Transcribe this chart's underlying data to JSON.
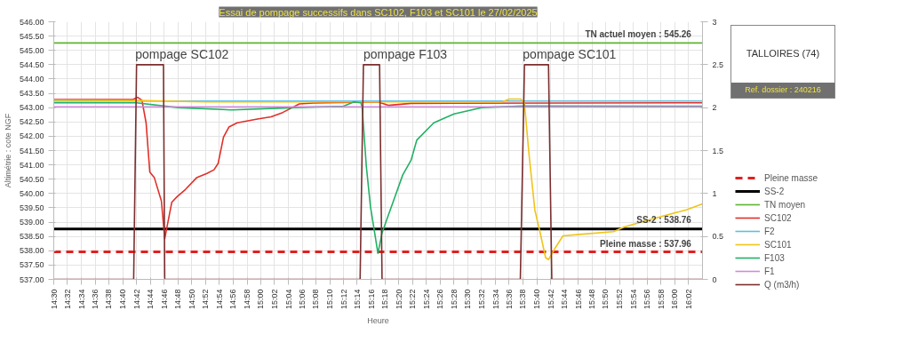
{
  "chart_data": {
    "type": "line",
    "title": "Essai de pompage successifs dans SC102, F103 et SC101 le 27/02/2025",
    "xlabel": "Heure",
    "ylabel": "Altimétrie : cote NGF",
    "xlim": [
      14.5,
      16.067
    ],
    "ylim": [
      537,
      546
    ],
    "y2lim": [
      0,
      3
    ],
    "xticks": [
      {
        "value": 14.5,
        "label": "14:30"
      },
      {
        "value": 14.533,
        "label": "14:32"
      },
      {
        "value": 14.567,
        "label": "14:34"
      },
      {
        "value": 14.6,
        "label": "14:36"
      },
      {
        "value": 14.633,
        "label": "14:38"
      },
      {
        "value": 14.667,
        "label": "14:40"
      },
      {
        "value": 14.7,
        "label": "14:42"
      },
      {
        "value": 14.733,
        "label": "14:44"
      },
      {
        "value": 14.767,
        "label": "14:46"
      },
      {
        "value": 14.8,
        "label": "14:48"
      },
      {
        "value": 14.833,
        "label": "14:50"
      },
      {
        "value": 14.867,
        "label": "14:52"
      },
      {
        "value": 14.9,
        "label": "14:54"
      },
      {
        "value": 14.933,
        "label": "14:56"
      },
      {
        "value": 14.967,
        "label": "14:58"
      },
      {
        "value": 15.0,
        "label": "15:00"
      },
      {
        "value": 15.033,
        "label": "15:02"
      },
      {
        "value": 15.067,
        "label": "15:04"
      },
      {
        "value": 15.1,
        "label": "15:06"
      },
      {
        "value": 15.133,
        "label": "15:08"
      },
      {
        "value": 15.167,
        "label": "15:10"
      },
      {
        "value": 15.2,
        "label": "15:12"
      },
      {
        "value": 15.233,
        "label": "15:14"
      },
      {
        "value": 15.267,
        "label": "15:16"
      },
      {
        "value": 15.3,
        "label": "15:18"
      },
      {
        "value": 15.333,
        "label": "15:20"
      },
      {
        "value": 15.367,
        "label": "15:22"
      },
      {
        "value": 15.4,
        "label": "15:24"
      },
      {
        "value": 15.433,
        "label": "15:26"
      },
      {
        "value": 15.467,
        "label": "15:28"
      },
      {
        "value": 15.5,
        "label": "15:30"
      },
      {
        "value": 15.533,
        "label": "15:32"
      },
      {
        "value": 15.567,
        "label": "15:34"
      },
      {
        "value": 15.6,
        "label": "15:36"
      },
      {
        "value": 15.633,
        "label": "15:38"
      },
      {
        "value": 15.667,
        "label": "15:40"
      },
      {
        "value": 15.7,
        "label": "15:42"
      },
      {
        "value": 15.733,
        "label": "15:44"
      },
      {
        "value": 15.767,
        "label": "15:46"
      },
      {
        "value": 15.8,
        "label": "15:48"
      },
      {
        "value": 15.833,
        "label": "15:50"
      },
      {
        "value": 15.867,
        "label": "15:52"
      },
      {
        "value": 15.9,
        "label": "15:54"
      },
      {
        "value": 15.933,
        "label": "15:56"
      },
      {
        "value": 15.967,
        "label": "15:58"
      },
      {
        "value": 16.0,
        "label": "16:00"
      },
      {
        "value": 16.033,
        "label": "16:02"
      }
    ],
    "yticks": [
      {
        "value": 537,
        "label": "537.00"
      },
      {
        "value": 537.5,
        "label": "537.50"
      },
      {
        "value": 538,
        "label": "538.00"
      },
      {
        "value": 538.5,
        "label": "538.50"
      },
      {
        "value": 539,
        "label": "539.00"
      },
      {
        "value": 539.5,
        "label": "539.50"
      },
      {
        "value": 540,
        "label": "540.00"
      },
      {
        "value": 540.5,
        "label": "540.50"
      },
      {
        "value": 541,
        "label": "541.00"
      },
      {
        "value": 541.5,
        "label": "541.50"
      },
      {
        "value": 542,
        "label": "542.00"
      },
      {
        "value": 542.5,
        "label": "542.50"
      },
      {
        "value": 543,
        "label": "543.00"
      },
      {
        "value": 543.5,
        "label": "543.50"
      },
      {
        "value": 544,
        "label": "544.00"
      },
      {
        "value": 544.5,
        "label": "544.50"
      },
      {
        "value": 545,
        "label": "545.00"
      },
      {
        "value": 545.5,
        "label": "545.50"
      },
      {
        "value": 546,
        "label": "546.00"
      }
    ],
    "y2ticks": [
      0,
      0.5,
      1,
      1.5,
      2,
      2.5,
      3
    ],
    "grid": true,
    "legend": "right",
    "marker": "none",
    "line_style": "solid",
    "series": [
      {
        "name": "Pleine masse",
        "color": "#e02020",
        "line_style": "dashed",
        "x": [
          14.5,
          16.067
        ],
        "values": [
          537.96,
          537.96
        ]
      },
      {
        "name": "SS-2",
        "color": "#000000",
        "x": [
          14.5,
          16.067
        ],
        "values": [
          538.76,
          538.76
        ]
      },
      {
        "name": "TN moyen",
        "color": "#5cb531",
        "x": [
          14.5,
          16.067
        ],
        "values": [
          545.26,
          545.26
        ]
      },
      {
        "name": "SC102",
        "color": "#e0302a",
        "x": [
          14.5,
          14.69,
          14.703,
          14.713,
          14.723,
          14.732,
          14.743,
          14.76,
          14.768,
          14.785,
          14.798,
          14.818,
          14.845,
          14.87,
          14.887,
          14.897,
          14.91,
          14.923,
          14.943,
          14.992,
          15.025,
          15.053,
          15.093,
          15.127,
          15.283,
          15.308,
          15.363,
          16.067
        ],
        "values": [
          543.28,
          543.28,
          543.36,
          543.26,
          542.47,
          540.75,
          540.55,
          539.74,
          538.42,
          539.69,
          539.89,
          540.14,
          540.55,
          540.7,
          540.83,
          541.05,
          541.97,
          542.32,
          542.47,
          542.6,
          542.68,
          542.83,
          543.13,
          543.16,
          543.2,
          543.08,
          543.15,
          543.17
        ]
      },
      {
        "name": "F2",
        "color": "#5bbfe0",
        "x": [
          14.5,
          16.067
        ],
        "values": [
          543.23,
          543.23
        ]
      },
      {
        "name": "SC101",
        "color": "#f0c419",
        "x": [
          14.5,
          14.7,
          14.87,
          15.583,
          15.6,
          15.628,
          15.637,
          15.648,
          15.662,
          15.675,
          15.688,
          15.695,
          15.71,
          15.73,
          15.77,
          15.852,
          15.878,
          15.938,
          16.028,
          16.067
        ],
        "values": [
          543.26,
          543.25,
          543.2,
          543.2,
          543.3,
          543.3,
          543.15,
          541.36,
          539.43,
          538.62,
          537.76,
          537.69,
          538.07,
          538.52,
          538.57,
          538.67,
          538.83,
          539.08,
          539.43,
          539.64
        ]
      },
      {
        "name": "F103",
        "color": "#22b064",
        "x": [
          14.5,
          14.7,
          14.8,
          14.93,
          15.083,
          15.2,
          15.225,
          15.242,
          15.245,
          15.255,
          15.265,
          15.283,
          15.293,
          15.303,
          15.323,
          15.343,
          15.363,
          15.377,
          15.418,
          15.467,
          15.533,
          15.633,
          16.067
        ],
        "values": [
          543.17,
          543.17,
          543.0,
          542.92,
          543.0,
          543.05,
          543.2,
          543.17,
          542.98,
          540.95,
          539.54,
          537.91,
          538.62,
          539.03,
          539.84,
          540.65,
          541.16,
          541.87,
          542.47,
          542.78,
          543.0,
          543.06,
          543.05
        ]
      },
      {
        "name": "F1",
        "color": "#d08ad8",
        "x": [
          14.5,
          16.067
        ],
        "values": [
          543.03,
          543.03
        ]
      },
      {
        "name": "Q (m3/h)",
        "color": "#7b2e2e",
        "axis": "y2",
        "x": [
          14.5,
          14.693,
          14.7,
          14.765,
          14.768,
          15.24,
          15.248,
          15.287,
          15.293,
          15.627,
          15.637,
          15.695,
          15.703,
          16.067
        ],
        "values": [
          0,
          0,
          2.5,
          2.5,
          0,
          0,
          2.5,
          2.5,
          0,
          0,
          2.5,
          2.5,
          0,
          0
        ]
      }
    ],
    "annotations": [
      {
        "text": "pompage SC102",
        "x": 14.697,
        "y": 544.62
      },
      {
        "text": "pompage F103",
        "x": 15.248,
        "y": 544.62
      },
      {
        "text": "pompage SC101",
        "x": 15.633,
        "y": 544.62
      },
      {
        "text": "TN actuel moyen : 545.26",
        "x": 16.04,
        "y": 545.4
      },
      {
        "text": "SS-2 : 538.76",
        "x": 16.04,
        "y": 538.92
      },
      {
        "text": "Pleine masse : 537.96",
        "x": 16.04,
        "y": 538.06
      },
      "TALLOIRES (74)",
      "Ref. dossier : 240216"
    ]
  }
}
